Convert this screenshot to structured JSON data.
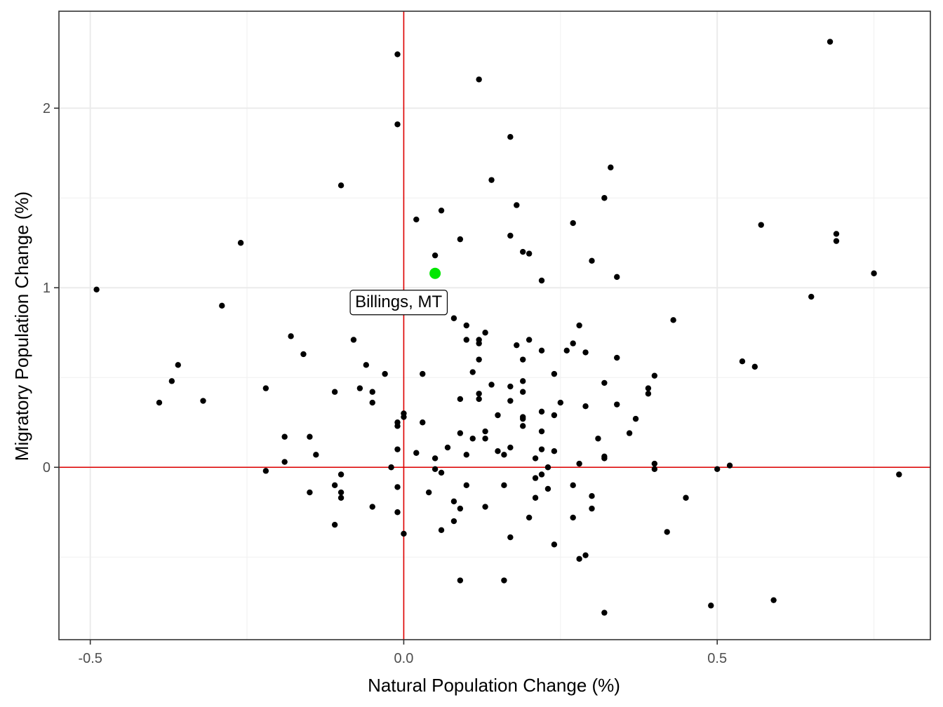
{
  "chart_data": {
    "type": "scatter",
    "title": "",
    "xlabel": "Natural Population Change (%)",
    "ylabel": "Migratory Population Change (%)",
    "xlim": [
      -0.55,
      0.84
    ],
    "ylim": [
      -0.96,
      2.54
    ],
    "x_ticks": [
      -0.5,
      0.0,
      0.5
    ],
    "x_tick_labels": [
      "-0.5",
      "0.0",
      "0.5"
    ],
    "x_minor_ticks": [
      -0.25,
      0.25,
      0.75
    ],
    "y_ticks": [
      0,
      1,
      2
    ],
    "y_tick_labels": [
      "0",
      "1",
      "2"
    ],
    "y_minor_ticks": [
      -0.5,
      0.5,
      1.5
    ],
    "grid": true,
    "reference_lines": {
      "x": 0,
      "y": 0,
      "color": "#e00000"
    },
    "point_color": "#000000",
    "highlight_color": "#00e600",
    "highlight": {
      "label": "Billings, MT",
      "x": 0.05,
      "y": 1.08
    },
    "points": [
      [
        -0.49,
        0.99
      ],
      [
        -0.39,
        0.36
      ],
      [
        -0.37,
        0.48
      ],
      [
        -0.36,
        0.57
      ],
      [
        -0.32,
        0.37
      ],
      [
        -0.29,
        0.9
      ],
      [
        -0.26,
        1.25
      ],
      [
        -0.22,
        0.44
      ],
      [
        -0.22,
        -0.02
      ],
      [
        -0.19,
        0.17
      ],
      [
        -0.19,
        0.03
      ],
      [
        -0.18,
        0.73
      ],
      [
        -0.16,
        0.63
      ],
      [
        -0.15,
        0.17
      ],
      [
        -0.15,
        -0.14
      ],
      [
        -0.14,
        0.07
      ],
      [
        -0.11,
        0.42
      ],
      [
        -0.11,
        -0.1
      ],
      [
        -0.11,
        -0.32
      ],
      [
        -0.1,
        1.57
      ],
      [
        -0.1,
        -0.04
      ],
      [
        -0.1,
        -0.14
      ],
      [
        -0.1,
        -0.17
      ],
      [
        -0.08,
        0.71
      ],
      [
        -0.07,
        0.44
      ],
      [
        -0.06,
        0.57
      ],
      [
        -0.05,
        0.42
      ],
      [
        -0.05,
        0.36
      ],
      [
        -0.05,
        -0.22
      ],
      [
        -0.03,
        0.52
      ],
      [
        -0.02,
        0.0
      ],
      [
        -0.01,
        2.3
      ],
      [
        -0.01,
        1.91
      ],
      [
        -0.01,
        0.25
      ],
      [
        -0.01,
        0.23
      ],
      [
        -0.01,
        0.1
      ],
      [
        -0.01,
        -0.11
      ],
      [
        -0.01,
        -0.25
      ],
      [
        0.0,
        0.3
      ],
      [
        0.0,
        0.28
      ],
      [
        0.0,
        -0.37
      ],
      [
        0.02,
        1.38
      ],
      [
        0.02,
        0.08
      ],
      [
        0.03,
        0.52
      ],
      [
        0.03,
        0.25
      ],
      [
        0.04,
        -0.14
      ],
      [
        0.05,
        1.18
      ],
      [
        0.05,
        0.05
      ],
      [
        0.05,
        -0.01
      ],
      [
        0.06,
        1.43
      ],
      [
        0.06,
        -0.03
      ],
      [
        0.06,
        -0.35
      ],
      [
        0.07,
        0.11
      ],
      [
        0.08,
        0.83
      ],
      [
        0.08,
        -0.19
      ],
      [
        0.08,
        -0.3
      ],
      [
        0.09,
        1.27
      ],
      [
        0.09,
        0.38
      ],
      [
        0.09,
        0.19
      ],
      [
        0.09,
        -0.23
      ],
      [
        0.09,
        -0.63
      ],
      [
        0.1,
        0.79
      ],
      [
        0.1,
        0.71
      ],
      [
        0.1,
        0.07
      ],
      [
        0.1,
        -0.1
      ],
      [
        0.11,
        0.53
      ],
      [
        0.11,
        0.16
      ],
      [
        0.12,
        2.16
      ],
      [
        0.12,
        0.71
      ],
      [
        0.12,
        0.69
      ],
      [
        0.12,
        0.6
      ],
      [
        0.12,
        0.41
      ],
      [
        0.12,
        0.38
      ],
      [
        0.13,
        0.75
      ],
      [
        0.13,
        0.2
      ],
      [
        0.13,
        0.16
      ],
      [
        0.13,
        -0.22
      ],
      [
        0.14,
        1.6
      ],
      [
        0.14,
        0.46
      ],
      [
        0.15,
        0.29
      ],
      [
        0.15,
        0.09
      ],
      [
        0.16,
        0.07
      ],
      [
        0.16,
        -0.1
      ],
      [
        0.16,
        -0.63
      ],
      [
        0.17,
        1.84
      ],
      [
        0.17,
        1.29
      ],
      [
        0.17,
        0.45
      ],
      [
        0.17,
        0.37
      ],
      [
        0.17,
        0.11
      ],
      [
        0.17,
        -0.39
      ],
      [
        0.18,
        1.46
      ],
      [
        0.18,
        0.68
      ],
      [
        0.19,
        1.2
      ],
      [
        0.19,
        0.6
      ],
      [
        0.19,
        0.48
      ],
      [
        0.19,
        0.42
      ],
      [
        0.19,
        0.28
      ],
      [
        0.19,
        0.27
      ],
      [
        0.19,
        0.23
      ],
      [
        0.2,
        1.19
      ],
      [
        0.2,
        0.71
      ],
      [
        0.2,
        -0.28
      ],
      [
        0.21,
        0.05
      ],
      [
        0.21,
        -0.06
      ],
      [
        0.21,
        -0.17
      ],
      [
        0.22,
        1.04
      ],
      [
        0.22,
        0.65
      ],
      [
        0.22,
        0.31
      ],
      [
        0.22,
        0.2
      ],
      [
        0.22,
        0.1
      ],
      [
        0.22,
        -0.04
      ],
      [
        0.23,
        0.0
      ],
      [
        0.23,
        -0.12
      ],
      [
        0.24,
        0.52
      ],
      [
        0.24,
        0.29
      ],
      [
        0.24,
        0.09
      ],
      [
        0.24,
        -0.43
      ],
      [
        0.25,
        0.36
      ],
      [
        0.26,
        0.65
      ],
      [
        0.27,
        1.36
      ],
      [
        0.27,
        0.69
      ],
      [
        0.27,
        -0.1
      ],
      [
        0.27,
        -0.28
      ],
      [
        0.28,
        0.79
      ],
      [
        0.28,
        0.02
      ],
      [
        0.28,
        -0.51
      ],
      [
        0.29,
        0.64
      ],
      [
        0.29,
        0.34
      ],
      [
        0.29,
        -0.49
      ],
      [
        0.3,
        1.15
      ],
      [
        0.3,
        -0.16
      ],
      [
        0.3,
        -0.23
      ],
      [
        0.31,
        0.16
      ],
      [
        0.32,
        1.5
      ],
      [
        0.32,
        0.47
      ],
      [
        0.32,
        0.06
      ],
      [
        0.32,
        0.05
      ],
      [
        0.32,
        -0.81
      ],
      [
        0.33,
        1.67
      ],
      [
        0.34,
        1.06
      ],
      [
        0.34,
        0.61
      ],
      [
        0.34,
        0.35
      ],
      [
        0.36,
        0.19
      ],
      [
        0.37,
        0.27
      ],
      [
        0.39,
        0.44
      ],
      [
        0.39,
        0.41
      ],
      [
        0.4,
        0.51
      ],
      [
        0.4,
        0.02
      ],
      [
        0.4,
        -0.01
      ],
      [
        0.42,
        -0.36
      ],
      [
        0.43,
        0.82
      ],
      [
        0.45,
        -0.17
      ],
      [
        0.49,
        -0.77
      ],
      [
        0.5,
        -0.01
      ],
      [
        0.52,
        0.01
      ],
      [
        0.54,
        0.59
      ],
      [
        0.56,
        0.56
      ],
      [
        0.57,
        1.35
      ],
      [
        0.59,
        -0.74
      ],
      [
        0.65,
        0.95
      ],
      [
        0.68,
        2.37
      ],
      [
        0.69,
        1.3
      ],
      [
        0.69,
        1.26
      ],
      [
        0.75,
        1.08
      ],
      [
        0.79,
        -0.04
      ]
    ]
  }
}
